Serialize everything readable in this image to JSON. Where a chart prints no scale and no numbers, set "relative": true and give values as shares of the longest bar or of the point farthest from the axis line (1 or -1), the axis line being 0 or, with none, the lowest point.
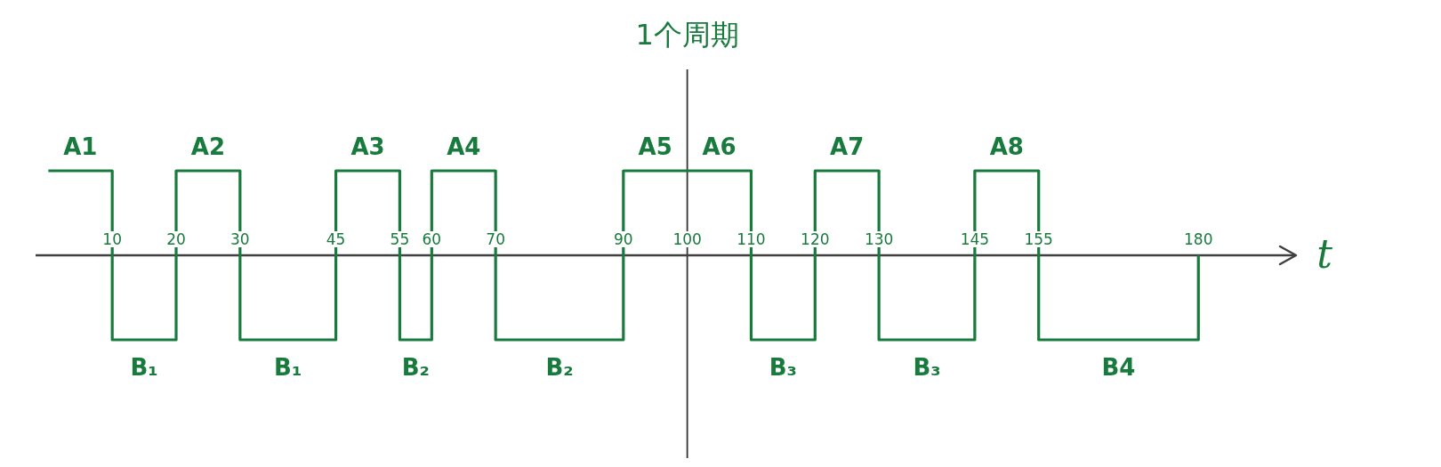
{
  "chart_data": {
    "type": "step",
    "relative": true,
    "x": [
      0,
      10,
      20,
      30,
      45,
      55,
      60,
      70,
      90,
      100,
      110,
      120,
      130,
      145,
      155,
      180
    ],
    "series": [
      {
        "color": "#187a3c",
        "values": [
          1,
          -1,
          1,
          -1,
          1,
          -1,
          1,
          -1,
          1,
          1,
          -1,
          1,
          -1,
          1,
          -1,
          0
        ]
      }
    ],
    "xlim": [
      -2,
      195
    ],
    "xticks": [
      10,
      20,
      30,
      45,
      55,
      60,
      70,
      90,
      100,
      110,
      120,
      130,
      145,
      155,
      180
    ],
    "xlabel": "t",
    "tick_labels": "x",
    "grid": false,
    "ref_lines": [
      {
        "axis": "x",
        "value": 100,
        "label": "1个周期",
        "color": "#333333"
      }
    ],
    "annotations": [
      {
        "text": "A1",
        "x": 5,
        "y": 1
      },
      {
        "text": "B₁",
        "x": 15,
        "y": -1
      },
      {
        "text": "A2",
        "x": 25,
        "y": 1
      },
      {
        "text": "B₁",
        "x": 37.5,
        "y": -1
      },
      {
        "text": "A3",
        "x": 50,
        "y": 1
      },
      {
        "text": "B₂",
        "x": 57.5,
        "y": -1
      },
      {
        "text": "A4",
        "x": 65,
        "y": 1
      },
      {
        "text": "B₂",
        "x": 80,
        "y": -1
      },
      {
        "text": "A5",
        "x": 95,
        "y": 1
      },
      {
        "text": "A6",
        "x": 105,
        "y": 1
      },
      {
        "text": "B₃",
        "x": 115,
        "y": -1
      },
      {
        "text": "A7",
        "x": 125,
        "y": 1
      },
      {
        "text": "B₃",
        "x": 137.5,
        "y": -1
      },
      {
        "text": "A8",
        "x": 150,
        "y": 1
      },
      {
        "text": "B4",
        "x": 167.5,
        "y": -1
      }
    ]
  }
}
